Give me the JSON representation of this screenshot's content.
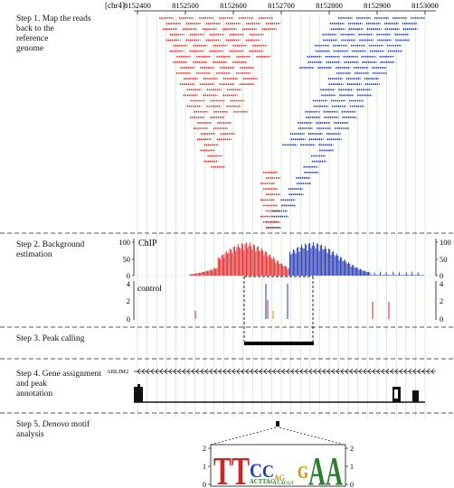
{
  "chromosome": "[chr4]",
  "coordinates": [
    "8152400",
    "8152500",
    "8152600",
    "8152700",
    "8152800",
    "8152900",
    "8153000"
  ],
  "steps": [
    {
      "id": "step1",
      "label": "Step 1. Map the reads\n      back to the\n      reference\n      genome"
    },
    {
      "id": "step2",
      "label": "Step 2. Background\n      estimation"
    },
    {
      "id": "step3",
      "label": "Step 3. Peak calling"
    },
    {
      "id": "step4",
      "label": "Step 4. Gene assignment\n      and peak\n      annotation"
    },
    {
      "id": "step5_prefix",
      "label": "Step 5. "
    },
    {
      "id": "step5_italic",
      "label": "Denovo"
    },
    {
      "id": "step5_suffix",
      "label": " motif\n      analysis"
    }
  ],
  "chip": {
    "label": "ChIP",
    "y_ticks": [
      "100",
      "50",
      "0"
    ]
  },
  "control": {
    "label": "control",
    "y_ticks": [
      "4",
      "2",
      "0"
    ]
  },
  "gene": {
    "name": "ABLIM2"
  },
  "motif": {
    "sequence": "TTCC G AA",
    "y_ticks": [
      "2",
      "1",
      "0"
    ]
  },
  "colors": {
    "forward_reads": "#e02020",
    "reverse_reads": "#1a2fb0",
    "grid": "#b9e6b9",
    "dashed_separator": "#555555",
    "gene_track": "#111111"
  }
}
